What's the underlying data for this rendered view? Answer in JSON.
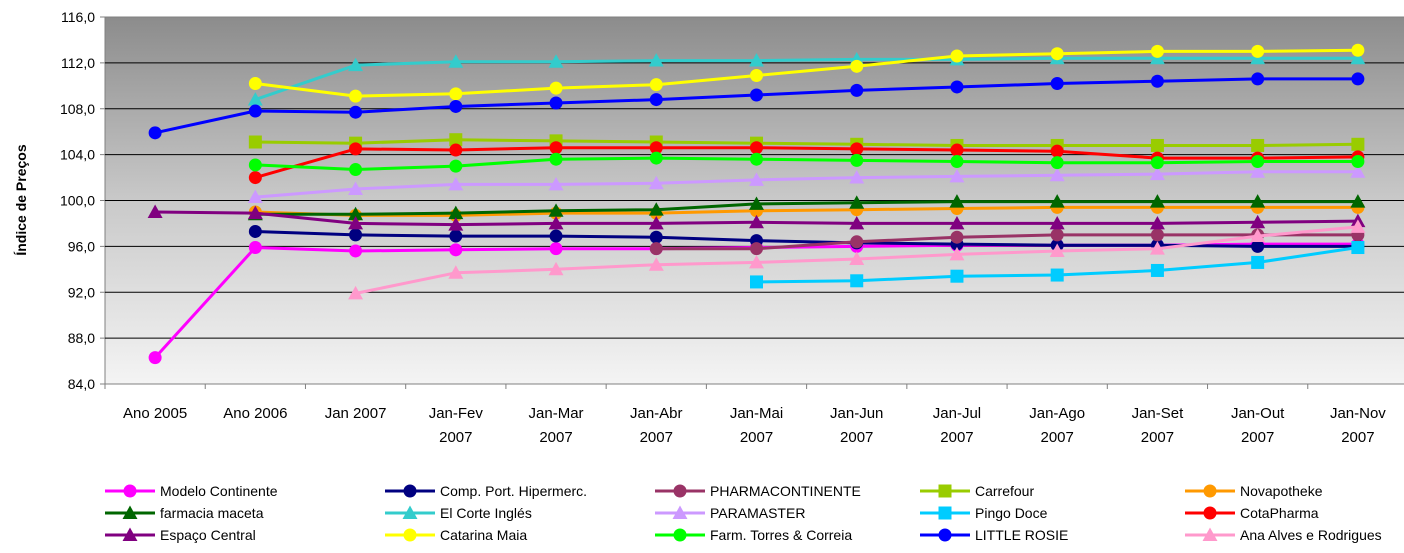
{
  "chart_data": {
    "type": "line",
    "title": "",
    "xlabel": "",
    "ylabel": "Índice de Preços",
    "ylim": [
      84,
      116
    ],
    "yticks": [
      "84,0",
      "88,0",
      "92,0",
      "96,0",
      "100,0",
      "104,0",
      "108,0",
      "112,0",
      "116,0"
    ],
    "grid": true,
    "legend_position": "bottom",
    "categories": [
      [
        "Ano 2005"
      ],
      [
        "Ano 2006"
      ],
      [
        "Jan 2007"
      ],
      [
        "Jan-Fev",
        "2007"
      ],
      [
        "Jan-Mar",
        "2007"
      ],
      [
        "Jan-Abr",
        "2007"
      ],
      [
        "Jan-Mai",
        "2007"
      ],
      [
        "Jan-Jun",
        "2007"
      ],
      [
        "Jan-Jul",
        "2007"
      ],
      [
        "Jan-Ago",
        "2007"
      ],
      [
        "Jan-Set",
        "2007"
      ],
      [
        "Jan-Out",
        "2007"
      ],
      [
        "Jan-Nov",
        "2007"
      ]
    ],
    "series": [
      {
        "name": "Modelo Continente",
        "color": "#ff00ff",
        "marker": "circle",
        "values": [
          86.3,
          95.9,
          95.6,
          95.7,
          95.8,
          95.8,
          95.9,
          96.0,
          96.1,
          96.1,
          96.1,
          96.2,
          96.2
        ]
      },
      {
        "name": "Comp. Port. Hipermerc.",
        "color": "#000080",
        "marker": "circle",
        "values": [
          null,
          97.3,
          97.0,
          96.9,
          96.9,
          96.8,
          96.5,
          96.3,
          96.2,
          96.1,
          96.1,
          96.0,
          96.0
        ]
      },
      {
        "name": "PHARMACONTINENTE",
        "color": "#993366",
        "marker": "circle",
        "values": [
          null,
          null,
          null,
          null,
          null,
          95.8,
          95.8,
          96.4,
          96.8,
          97.0,
          97.0,
          97.0,
          97.0
        ]
      },
      {
        "name": "Carrefour",
        "color": "#99cc00",
        "marker": "square",
        "values": [
          null,
          105.1,
          105.0,
          105.3,
          105.2,
          105.1,
          105.0,
          104.9,
          104.8,
          104.8,
          104.8,
          104.8,
          104.9
        ]
      },
      {
        "name": "Novapotheke",
        "color": "#ff9900",
        "marker": "circle",
        "values": [
          null,
          99.0,
          98.7,
          98.7,
          98.9,
          98.9,
          99.1,
          99.2,
          99.3,
          99.4,
          99.4,
          99.4,
          99.4
        ]
      },
      {
        "name": "farmacia maceta",
        "color": "#006600",
        "marker": "triangle",
        "values": [
          null,
          98.8,
          98.8,
          98.9,
          99.1,
          99.2,
          99.7,
          99.8,
          99.9,
          99.9,
          99.9,
          99.9,
          99.9
        ]
      },
      {
        "name": "El Corte Inglés",
        "color": "#33cccc",
        "marker": "triangle",
        "values": [
          null,
          108.8,
          111.8,
          112.1,
          112.1,
          112.2,
          112.2,
          112.3,
          112.3,
          112.4,
          112.4,
          112.4,
          112.4
        ]
      },
      {
        "name": "PARAMASTER",
        "color": "#cc99ff",
        "marker": "triangle",
        "values": [
          null,
          100.3,
          101.0,
          101.4,
          101.4,
          101.5,
          101.8,
          102.0,
          102.1,
          102.2,
          102.3,
          102.5,
          102.5
        ]
      },
      {
        "name": "Pingo Doce",
        "color": "#00ccff",
        "marker": "square",
        "values": [
          null,
          null,
          null,
          null,
          null,
          null,
          92.9,
          93.0,
          93.4,
          93.5,
          93.9,
          94.6,
          95.9
        ]
      },
      {
        "name": "CotaPharma",
        "color": "#ff0000",
        "marker": "circle",
        "values": [
          null,
          102.0,
          104.5,
          104.4,
          104.6,
          104.6,
          104.6,
          104.5,
          104.4,
          104.3,
          103.7,
          103.7,
          103.8
        ]
      },
      {
        "name": "Espaço Central",
        "color": "#800080",
        "marker": "triangle",
        "values": [
          99.0,
          98.9,
          98.0,
          97.9,
          98.0,
          98.0,
          98.1,
          98.0,
          98.0,
          98.0,
          98.0,
          98.1,
          98.2
        ]
      },
      {
        "name": "Catarina Maia",
        "color": "#ffff00",
        "marker": "circle",
        "values": [
          null,
          110.2,
          109.1,
          109.3,
          109.8,
          110.1,
          110.9,
          111.7,
          112.6,
          112.8,
          113.0,
          113.0,
          113.1
        ]
      },
      {
        "name": "Farm. Torres & Correia",
        "color": "#00ff00",
        "marker": "circle",
        "values": [
          null,
          103.1,
          102.7,
          103.0,
          103.6,
          103.7,
          103.6,
          103.5,
          103.4,
          103.3,
          103.3,
          103.4,
          103.4
        ]
      },
      {
        "name": "LITTLE ROSIE",
        "color": "#0000ff",
        "marker": "circle",
        "values": [
          105.9,
          107.8,
          107.7,
          108.2,
          108.5,
          108.8,
          109.2,
          109.6,
          109.9,
          110.2,
          110.4,
          110.6,
          110.6
        ]
      },
      {
        "name": "Ana Alves e Rodrigues",
        "color": "#ff99cc",
        "marker": "triangle",
        "values": [
          null,
          null,
          91.9,
          93.7,
          94.0,
          94.4,
          94.6,
          94.9,
          95.3,
          95.6,
          95.8,
          96.9,
          97.7
        ]
      }
    ]
  }
}
